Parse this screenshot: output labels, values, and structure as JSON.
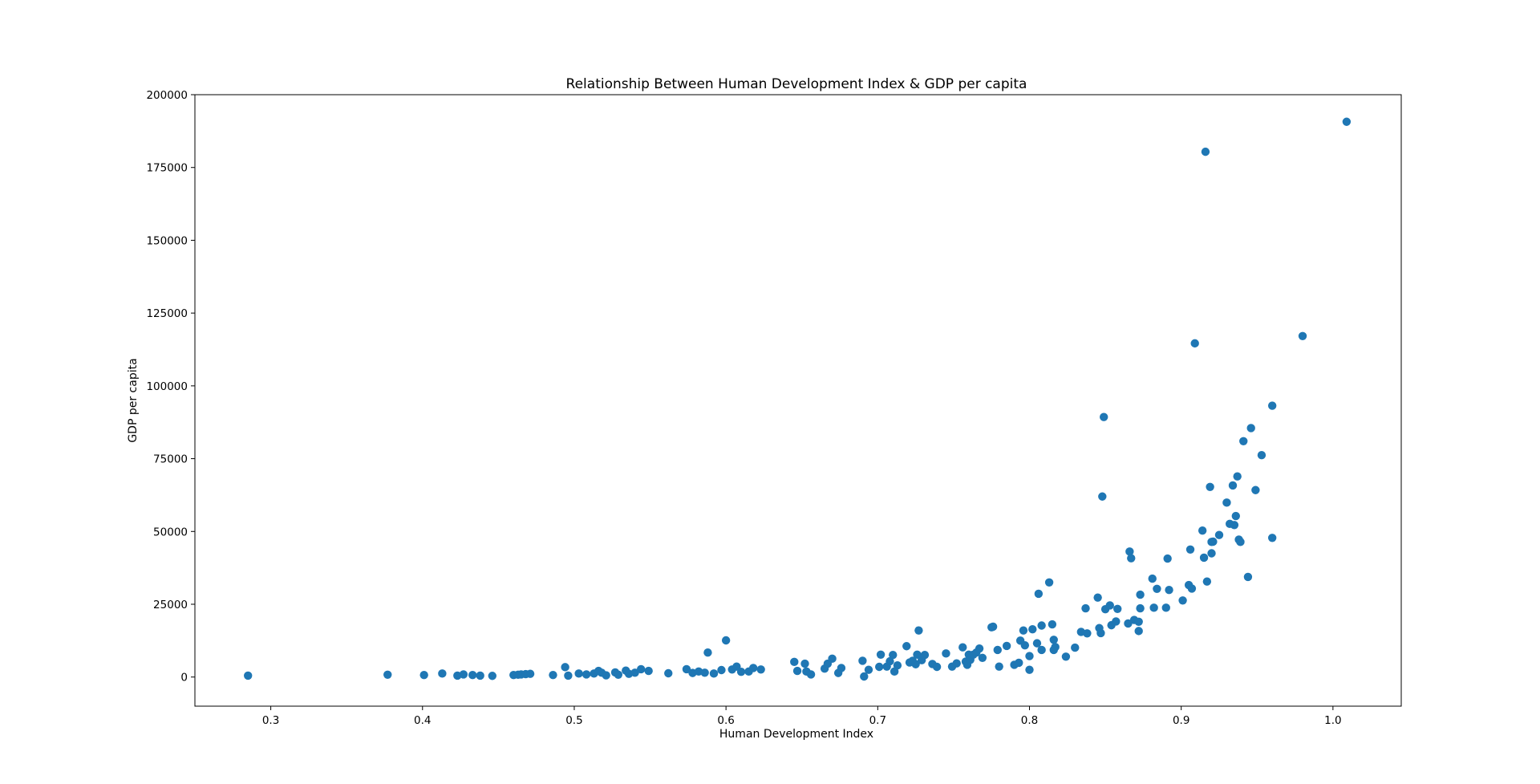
{
  "chart_data": {
    "type": "scatter",
    "title": "Relationship Between Human Development Index & GDP per capita",
    "xlabel": "Human Development Index",
    "ylabel": "GDP per capita",
    "xlim": [
      0.25,
      1.045
    ],
    "ylim": [
      -10000,
      200000
    ],
    "x_ticks": [
      0.3,
      0.4,
      0.5,
      0.6,
      0.7,
      0.8,
      0.9,
      1.0
    ],
    "x_tick_labels": [
      "0.3",
      "0.4",
      "0.5",
      "0.6",
      "0.7",
      "0.8",
      "0.9",
      "1.0"
    ],
    "y_ticks": [
      0,
      25000,
      50000,
      75000,
      100000,
      125000,
      150000,
      175000,
      200000
    ],
    "y_tick_labels": [
      "0",
      "25000",
      "50000",
      "75000",
      "100000",
      "125000",
      "150000",
      "175000",
      "200000"
    ],
    "grid": false,
    "marker_color": "#1f77b4",
    "x": [
      0.285,
      0.377,
      0.401,
      0.413,
      0.423,
      0.427,
      0.433,
      0.438,
      0.446,
      0.46,
      0.463,
      0.465,
      0.468,
      0.471,
      0.486,
      0.494,
      0.496,
      0.503,
      0.508,
      0.513,
      0.516,
      0.518,
      0.521,
      0.527,
      0.529,
      0.534,
      0.536,
      0.54,
      0.544,
      0.549,
      0.562,
      0.574,
      0.578,
      0.582,
      0.586,
      0.588,
      0.592,
      0.597,
      0.6,
      0.604,
      0.607,
      0.61,
      0.615,
      0.618,
      0.623,
      0.645,
      0.647,
      0.652,
      0.653,
      0.656,
      0.665,
      0.667,
      0.67,
      0.674,
      0.676,
      0.69,
      0.691,
      0.694,
      0.701,
      0.702,
      0.706,
      0.708,
      0.71,
      0.711,
      0.713,
      0.719,
      0.721,
      0.723,
      0.725,
      0.726,
      0.727,
      0.729,
      0.731,
      0.736,
      0.739,
      0.745,
      0.749,
      0.752,
      0.756,
      0.758,
      0.759,
      0.76,
      0.761,
      0.763,
      0.765,
      0.767,
      0.769,
      0.775,
      0.776,
      0.779,
      0.78,
      0.785,
      0.79,
      0.793,
      0.794,
      0.796,
      0.797,
      0.8,
      0.8,
      0.802,
      0.805,
      0.806,
      0.808,
      0.808,
      0.813,
      0.815,
      0.816,
      0.816,
      0.817,
      0.824,
      0.83,
      0.834,
      0.837,
      0.838,
      0.845,
      0.846,
      0.847,
      0.848,
      0.849,
      0.85,
      0.853,
      0.854,
      0.857,
      0.858,
      0.865,
      0.866,
      0.867,
      0.869,
      0.872,
      0.872,
      0.873,
      0.873,
      0.881,
      0.882,
      0.884,
      0.89,
      0.891,
      0.892,
      0.901,
      0.905,
      0.906,
      0.907,
      0.909,
      0.914,
      0.915,
      0.916,
      0.917,
      0.919,
      0.92,
      0.92,
      0.921,
      0.925,
      0.93,
      0.932,
      0.934,
      0.935,
      0.936,
      0.937,
      0.938,
      0.939,
      0.941,
      0.944,
      0.946,
      0.949,
      0.953,
      0.96,
      0.96,
      0.98,
      1.009
    ],
    "y": [
      500,
      800,
      700,
      1200,
      500,
      900,
      700,
      500,
      400,
      700,
      800,
      900,
      1000,
      1100,
      700,
      3400,
      500,
      1200,
      900,
      1200,
      2100,
      1500,
      600,
      1600,
      800,
      2200,
      1100,
      1500,
      2700,
      2100,
      1300,
      2700,
      1400,
      1900,
      1500,
      8400,
      1200,
      2400,
      12600,
      2600,
      3600,
      1800,
      1900,
      3100,
      2600,
      5200,
      2100,
      4600,
      1900,
      900,
      2900,
      4600,
      6300,
      1400,
      3100,
      5600,
      200,
      2500,
      3500,
      7700,
      3600,
      5400,
      7600,
      1900,
      4000,
      10600,
      5000,
      5600,
      4400,
      7700,
      16000,
      5800,
      7600,
      4500,
      3500,
      8100,
      3600,
      4700,
      10200,
      5300,
      4200,
      7700,
      5900,
      7700,
      8400,
      9800,
      6600,
      17100,
      17300,
      9300,
      3600,
      10700,
      4200,
      4900,
      12500,
      16000,
      10900,
      2500,
      7200,
      16400,
      11600,
      28600,
      9300,
      17700,
      32500,
      18100,
      12800,
      9300,
      10300,
      7000,
      10100,
      15500,
      23600,
      15000,
      27300,
      16800,
      15100,
      62000,
      89300,
      23300,
      24600,
      17800,
      19100,
      23400,
      18400,
      43100,
      40800,
      19600,
      15800,
      19000,
      23600,
      28300,
      33800,
      23800,
      30300,
      23800,
      40700,
      29900,
      26300,
      31600,
      43800,
      30400,
      114600,
      50300,
      41000,
      180400,
      32800,
      65300,
      46400,
      42500,
      46500,
      48800,
      59900,
      52600,
      65800,
      52200,
      55300,
      68900,
      47200,
      46400,
      81000,
      34400,
      85500,
      64200,
      76200,
      93200,
      47800,
      117100,
      190700
    ]
  }
}
